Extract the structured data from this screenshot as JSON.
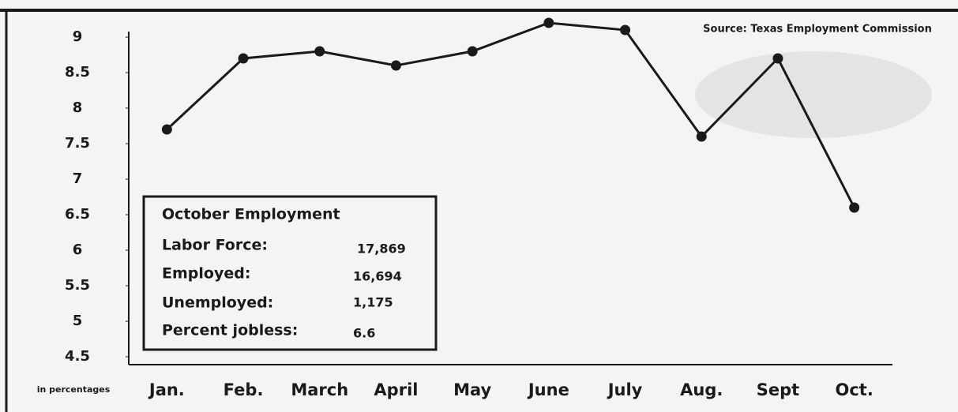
{
  "chart_data": {
    "type": "line",
    "source": "Source: Texas Employment Commission",
    "y_axis_label": "in percentages",
    "categories": [
      "Jan.",
      "Feb.",
      "March",
      "April",
      "May",
      "June",
      "July",
      "Aug.",
      "Sept",
      "Oct."
    ],
    "values": [
      7.7,
      8.7,
      8.8,
      8.6,
      8.8,
      9.2,
      9.1,
      7.6,
      8.7,
      6.6
    ],
    "color": "#1a1a1a",
    "ylim": [
      4.4,
      9.3
    ],
    "yticks": [
      4.5,
      5,
      5.5,
      6,
      6.5,
      7,
      7.5,
      8,
      8.5,
      9
    ],
    "grid": false,
    "inset": {
      "title": "October Employment",
      "rows": [
        [
          "Labor Force:",
          "17,869"
        ],
        [
          "Employed:",
          "16,694"
        ],
        [
          "Unemployed:",
          "1,175"
        ],
        [
          "Percent jobless:",
          "6.6"
        ]
      ]
    }
  }
}
